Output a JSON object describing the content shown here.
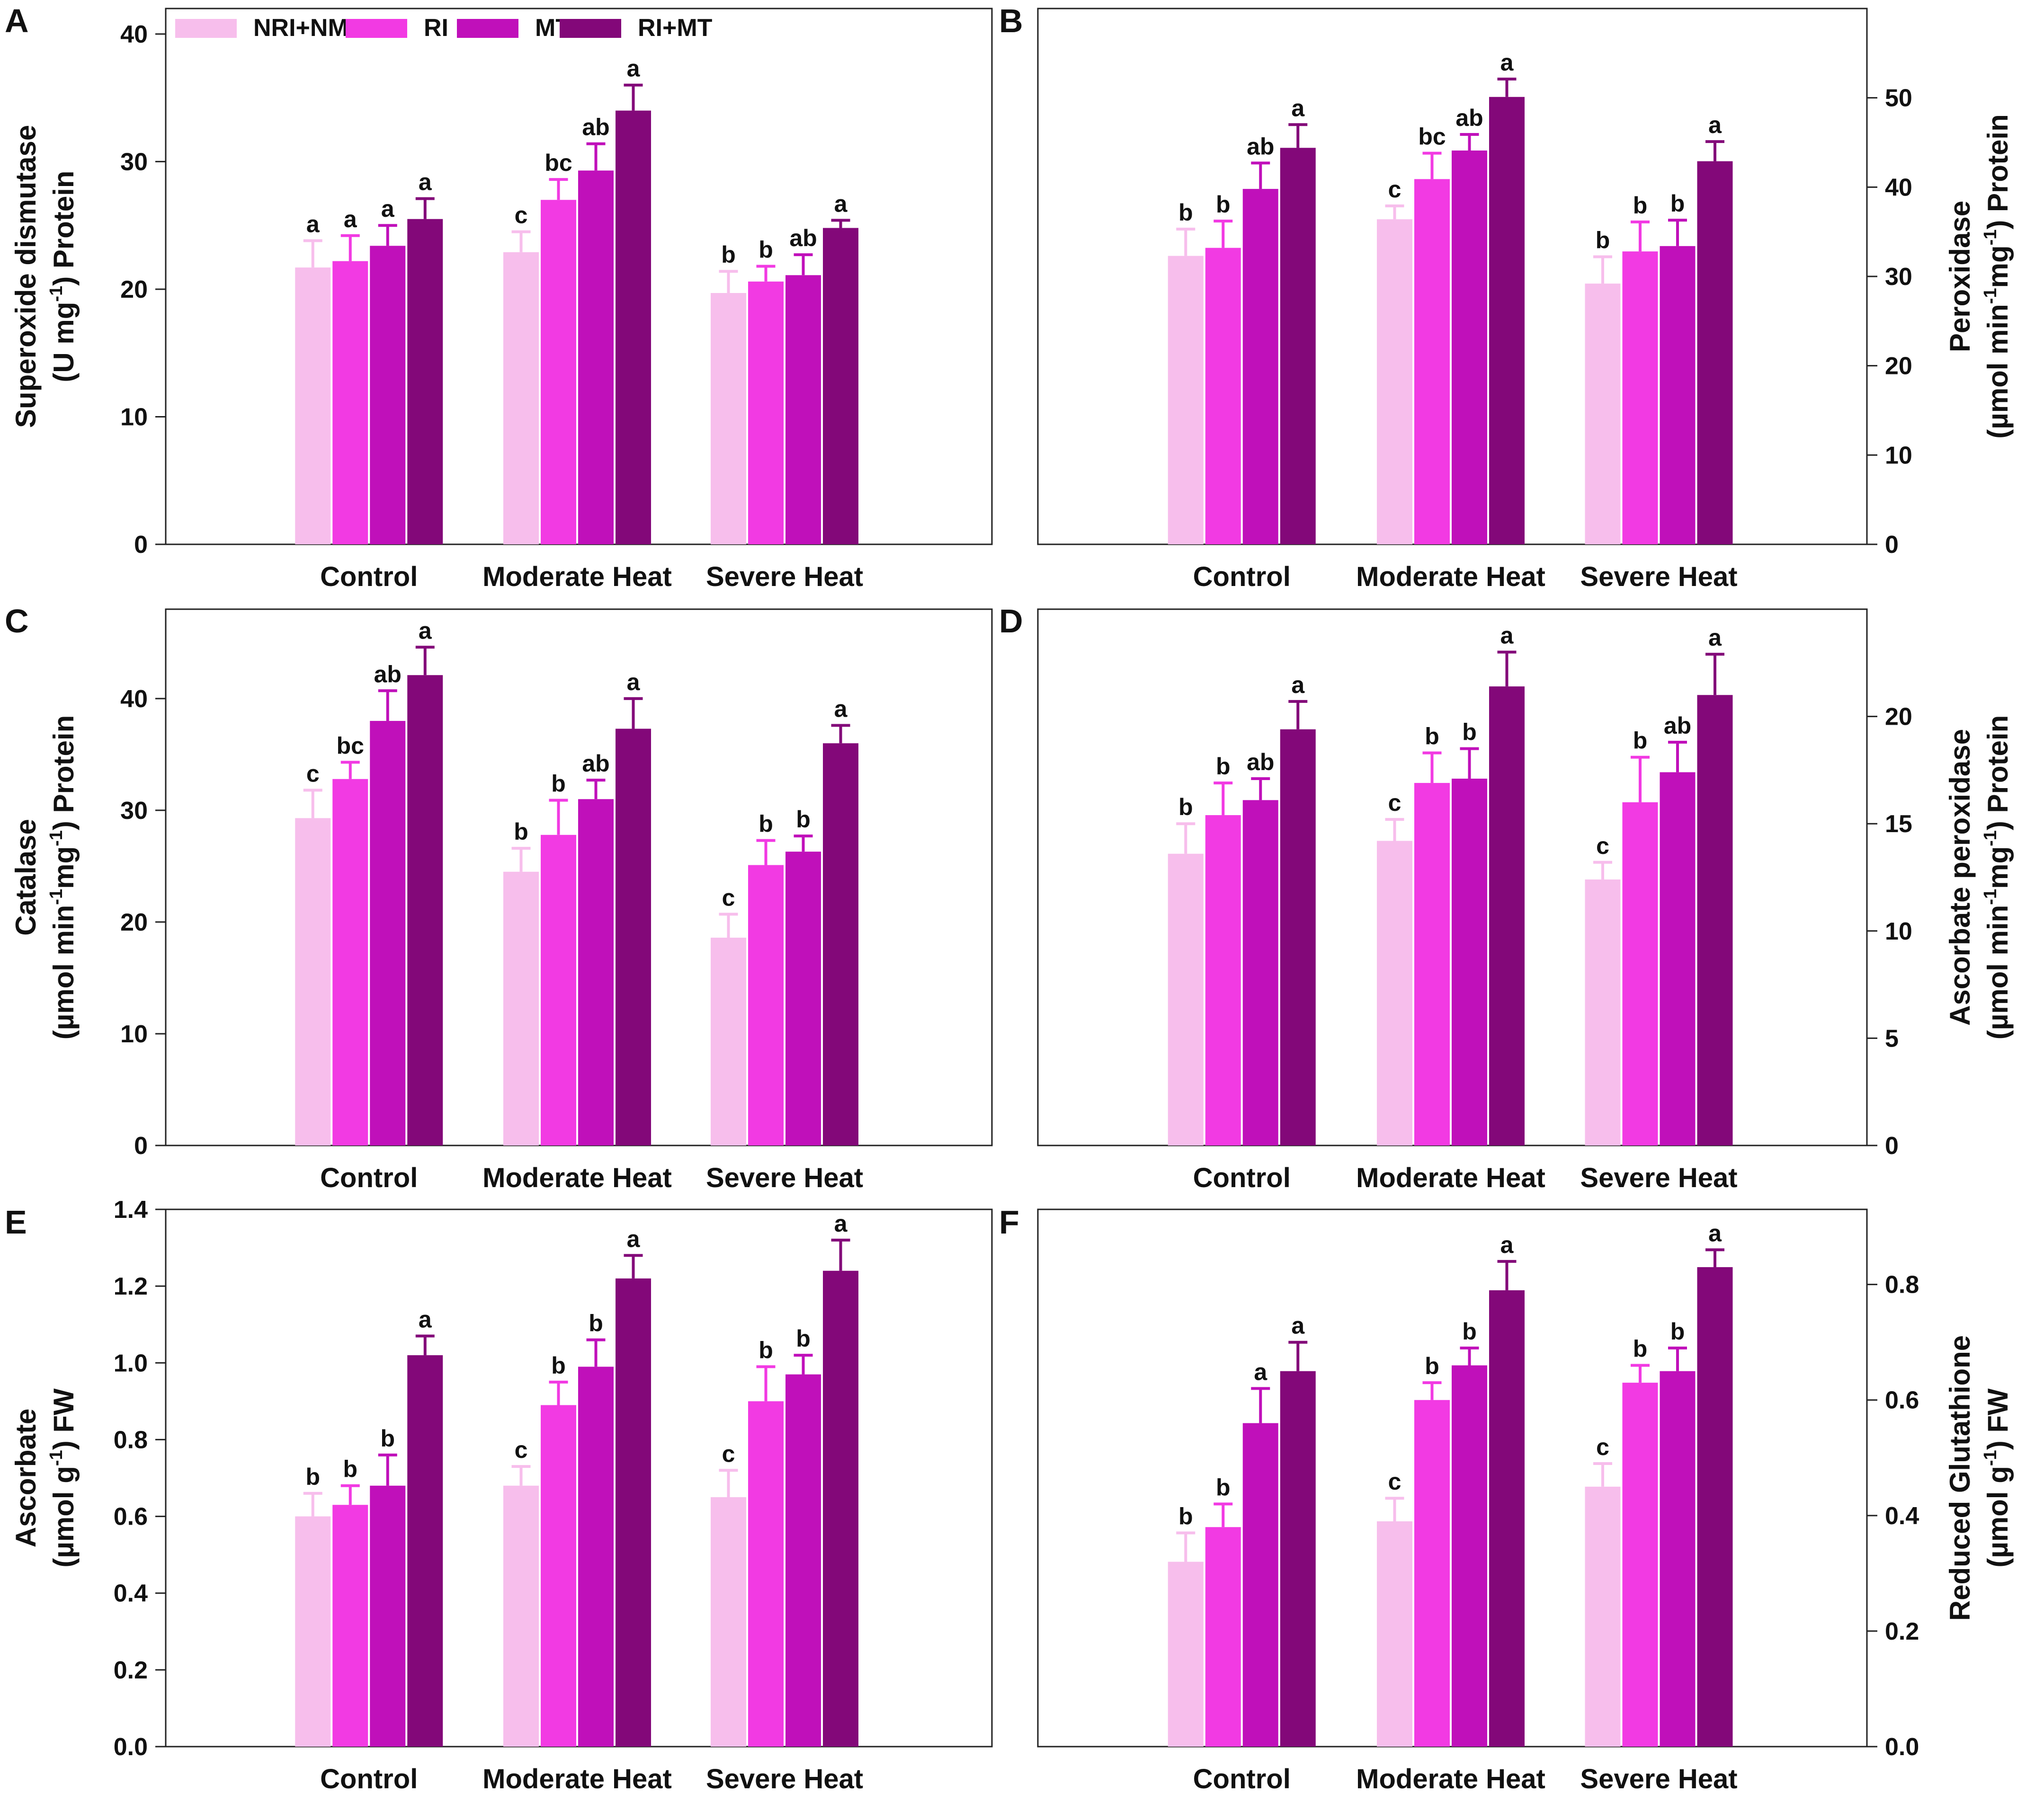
{
  "chart_data": [
    {
      "panel": "A",
      "type": "bar",
      "categories": [
        "Control",
        "Moderate Heat",
        "Severe Heat"
      ],
      "series": [
        {
          "name": "NRI+NMT",
          "values": [
            21.7,
            22.9,
            19.7
          ],
          "errors": [
            2.1,
            1.6,
            1.7
          ],
          "letters": [
            "a",
            "c",
            "b"
          ]
        },
        {
          "name": "RI",
          "values": [
            22.2,
            27.0,
            20.6
          ],
          "errors": [
            2.0,
            1.6,
            1.2
          ],
          "letters": [
            "a",
            "bc",
            "b"
          ]
        },
        {
          "name": "MT",
          "values": [
            23.4,
            29.3,
            21.1
          ],
          "errors": [
            1.6,
            2.1,
            1.6
          ],
          "letters": [
            "a",
            "ab",
            "ab"
          ]
        },
        {
          "name": "RI+MT",
          "values": [
            25.5,
            34.0,
            24.8
          ],
          "errors": [
            1.6,
            2.0,
            0.6
          ],
          "letters": [
            "a",
            "a",
            "a"
          ]
        }
      ],
      "ylim": [
        0,
        42
      ],
      "yticks": [
        "0",
        "10",
        "20",
        "30",
        "40"
      ],
      "ytick_values": [
        0,
        10,
        20,
        30,
        40
      ],
      "axis_side": "left",
      "ylabel_line1": "Superoxide dismutase",
      "ylabel_line2": [
        "(U mg",
        "-1",
        ") Protein"
      ]
    },
    {
      "panel": "B",
      "type": "bar",
      "categories": [
        "Control",
        "Moderate Heat",
        "Severe Heat"
      ],
      "series": [
        {
          "name": "NRI+NMT",
          "values": [
            32.3,
            36.4,
            29.2
          ],
          "errors": [
            3.0,
            1.5,
            3.0
          ],
          "letters": [
            "b",
            "c",
            "b"
          ]
        },
        {
          "name": "RI",
          "values": [
            33.2,
            40.9,
            32.8
          ],
          "errors": [
            3.0,
            2.9,
            3.3
          ],
          "letters": [
            "b",
            "bc",
            "b"
          ]
        },
        {
          "name": "MT",
          "values": [
            39.8,
            44.1,
            33.4
          ],
          "errors": [
            2.9,
            1.8,
            2.9
          ],
          "letters": [
            "ab",
            "ab",
            "b"
          ]
        },
        {
          "name": "RI+MT",
          "values": [
            44.4,
            50.1,
            42.9
          ],
          "errors": [
            2.6,
            2.0,
            2.2
          ],
          "letters": [
            "a",
            "a",
            "a"
          ]
        }
      ],
      "ylim": [
        0,
        60
      ],
      "yticks": [
        "0",
        "10",
        "20",
        "30",
        "40",
        "50"
      ],
      "ytick_values": [
        0,
        10,
        20,
        30,
        40,
        50
      ],
      "axis_side": "right",
      "ylabel_line1": "Peroxidase",
      "ylabel_line2": [
        "(µmol min",
        "-1",
        "mg",
        "-1",
        ") Protein"
      ]
    },
    {
      "panel": "C",
      "type": "bar",
      "categories": [
        "Control",
        "Moderate Heat",
        "Severe Heat"
      ],
      "series": [
        {
          "name": "NRI+NMT",
          "values": [
            29.3,
            24.5,
            18.6
          ],
          "errors": [
            2.5,
            2.1,
            2.1
          ],
          "letters": [
            "c",
            "b",
            "c"
          ]
        },
        {
          "name": "RI",
          "values": [
            32.8,
            27.8,
            25.1
          ],
          "errors": [
            1.5,
            3.1,
            2.2
          ],
          "letters": [
            "bc",
            "b",
            "b"
          ]
        },
        {
          "name": "MT",
          "values": [
            38.0,
            31.0,
            26.3
          ],
          "errors": [
            2.7,
            1.7,
            1.4
          ],
          "letters": [
            "ab",
            "ab",
            "b"
          ]
        },
        {
          "name": "RI+MT",
          "values": [
            42.1,
            37.3,
            36.0
          ],
          "errors": [
            2.5,
            2.7,
            1.6
          ],
          "letters": [
            "a",
            "a",
            "a"
          ]
        }
      ],
      "ylim": [
        0,
        48
      ],
      "yticks": [
        "0",
        "10",
        "20",
        "30",
        "40"
      ],
      "ytick_values": [
        0,
        10,
        20,
        30,
        40
      ],
      "axis_side": "left",
      "ylabel_line1": "Catalase",
      "ylabel_line2": [
        "(µmol min",
        "-1",
        "mg",
        "-1",
        ") Protein"
      ]
    },
    {
      "panel": "D",
      "type": "bar",
      "categories": [
        "Control",
        "Moderate Heat",
        "Severe Heat"
      ],
      "series": [
        {
          "name": "NRI+NMT",
          "values": [
            13.6,
            14.2,
            12.4
          ],
          "errors": [
            1.4,
            1.0,
            0.8
          ],
          "letters": [
            "b",
            "c",
            "c"
          ]
        },
        {
          "name": "RI",
          "values": [
            15.4,
            16.9,
            16.0
          ],
          "errors": [
            1.5,
            1.4,
            2.1
          ],
          "letters": [
            "b",
            "b",
            "b"
          ]
        },
        {
          "name": "MT",
          "values": [
            16.1,
            17.1,
            17.4
          ],
          "errors": [
            1.0,
            1.4,
            1.4
          ],
          "letters": [
            "ab",
            "b",
            "ab"
          ]
        },
        {
          "name": "RI+MT",
          "values": [
            19.4,
            21.4,
            21.0
          ],
          "errors": [
            1.3,
            1.6,
            1.9
          ],
          "letters": [
            "a",
            "a",
            "a"
          ]
        }
      ],
      "ylim": [
        0,
        25
      ],
      "yticks": [
        "0",
        "5",
        "10",
        "15",
        "20"
      ],
      "ytick_values": [
        0,
        5,
        10,
        15,
        20
      ],
      "axis_side": "right",
      "ylabel_line1": "Ascorbate peroxidase",
      "ylabel_line2": [
        "(µmol min",
        "-1",
        "mg",
        "-1",
        ") Protein"
      ]
    },
    {
      "panel": "E",
      "type": "bar",
      "categories": [
        "Control",
        "Moderate Heat",
        "Severe Heat"
      ],
      "series": [
        {
          "name": "NRI+NMT",
          "values": [
            0.6,
            0.68,
            0.65
          ],
          "errors": [
            0.06,
            0.05,
            0.07
          ],
          "letters": [
            "b",
            "c",
            "c"
          ]
        },
        {
          "name": "RI",
          "values": [
            0.63,
            0.89,
            0.9
          ],
          "errors": [
            0.05,
            0.06,
            0.09
          ],
          "letters": [
            "b",
            "b",
            "b"
          ]
        },
        {
          "name": "MT",
          "values": [
            0.68,
            0.99,
            0.97
          ],
          "errors": [
            0.08,
            0.07,
            0.05
          ],
          "letters": [
            "b",
            "b",
            "b"
          ]
        },
        {
          "name": "RI+MT",
          "values": [
            1.02,
            1.22,
            1.24
          ],
          "errors": [
            0.05,
            0.06,
            0.08
          ],
          "letters": [
            "a",
            "a",
            "a"
          ]
        }
      ],
      "ylim": [
        0,
        1.4
      ],
      "yticks": [
        "0.0",
        "0.2",
        "0.4",
        "0.6",
        "0.8",
        "1.0",
        "1.2",
        "1.4"
      ],
      "ytick_values": [
        0,
        0.2,
        0.4,
        0.6,
        0.8,
        1.0,
        1.2,
        1.4
      ],
      "axis_side": "left",
      "ylabel_line1": "Ascorbate",
      "ylabel_line2": [
        "(µmol g",
        "-1",
        ") FW"
      ]
    },
    {
      "panel": "F",
      "type": "bar",
      "categories": [
        "Control",
        "Moderate Heat",
        "Severe Heat"
      ],
      "series": [
        {
          "name": "NRI+NMT",
          "values": [
            0.32,
            0.39,
            0.45
          ],
          "errors": [
            0.05,
            0.04,
            0.04
          ],
          "letters": [
            "b",
            "c",
            "c"
          ]
        },
        {
          "name": "RI",
          "values": [
            0.38,
            0.6,
            0.63
          ],
          "errors": [
            0.04,
            0.03,
            0.03
          ],
          "letters": [
            "b",
            "b",
            "b"
          ]
        },
        {
          "name": "MT",
          "values": [
            0.56,
            0.66,
            0.65
          ],
          "errors": [
            0.06,
            0.03,
            0.04
          ],
          "letters": [
            "a",
            "b",
            "b"
          ]
        },
        {
          "name": "RI+MT",
          "values": [
            0.65,
            0.79,
            0.83
          ],
          "errors": [
            0.05,
            0.05,
            0.03
          ],
          "letters": [
            "a",
            "a",
            "a"
          ]
        }
      ],
      "ylim": [
        0,
        0.93
      ],
      "yticks": [
        "0.0",
        "0.2",
        "0.4",
        "0.6",
        "0.8"
      ],
      "ytick_values": [
        0,
        0.2,
        0.4,
        0.6,
        0.8
      ],
      "axis_side": "right",
      "ylabel_line1": "Reduced Glutathione",
      "ylabel_line2": [
        "(µmol g",
        "-1",
        ") FW"
      ]
    }
  ],
  "legend": {
    "items": [
      "NRI+NMT",
      "RI",
      "MT",
      "RI+MT"
    ],
    "colors": [
      "#F7BEEC",
      "#F23AE3",
      "#C010BA",
      "#830879"
    ]
  }
}
